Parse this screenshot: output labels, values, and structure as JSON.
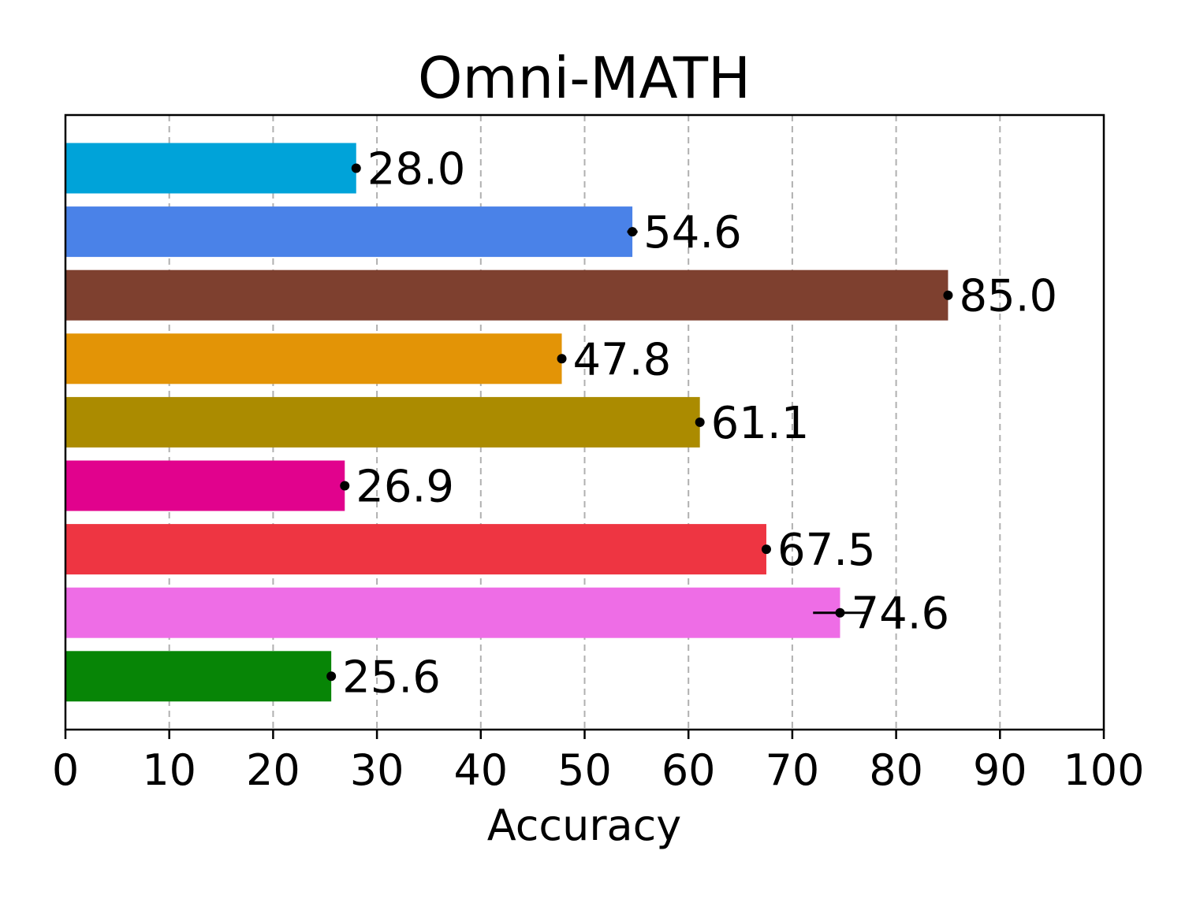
{
  "chart_data": {
    "type": "bar",
    "orientation": "horizontal",
    "title": "Omni-MATH",
    "xlabel": "Accuracy",
    "ylabel": "",
    "xlim": [
      0,
      100
    ],
    "xticks": [
      0,
      10,
      20,
      30,
      40,
      50,
      60,
      70,
      80,
      90,
      100
    ],
    "grid": "x-dashed",
    "bars": [
      {
        "value": 28.0,
        "label": "28.0",
        "color": "#00a3d9",
        "err": 0.0
      },
      {
        "value": 54.6,
        "label": "54.6",
        "color": "#4a82e8",
        "err": 0.5
      },
      {
        "value": 85.0,
        "label": "85.0",
        "color": "#7e402f",
        "err": 0.0
      },
      {
        "value": 47.8,
        "label": "47.8",
        "color": "#e39406",
        "err": 0.0
      },
      {
        "value": 61.1,
        "label": "61.1",
        "color": "#ab8b00",
        "err": 0.0
      },
      {
        "value": 26.9,
        "label": "26.9",
        "color": "#e1028d",
        "err": 0.0
      },
      {
        "value": 67.5,
        "label": "67.5",
        "color": "#ee3542",
        "err": 0.0
      },
      {
        "value": 74.6,
        "label": "74.6",
        "color": "#ee6de6",
        "err": 2.6
      },
      {
        "value": 25.6,
        "label": "25.6",
        "color": "#078506",
        "err": 0.0
      }
    ]
  }
}
